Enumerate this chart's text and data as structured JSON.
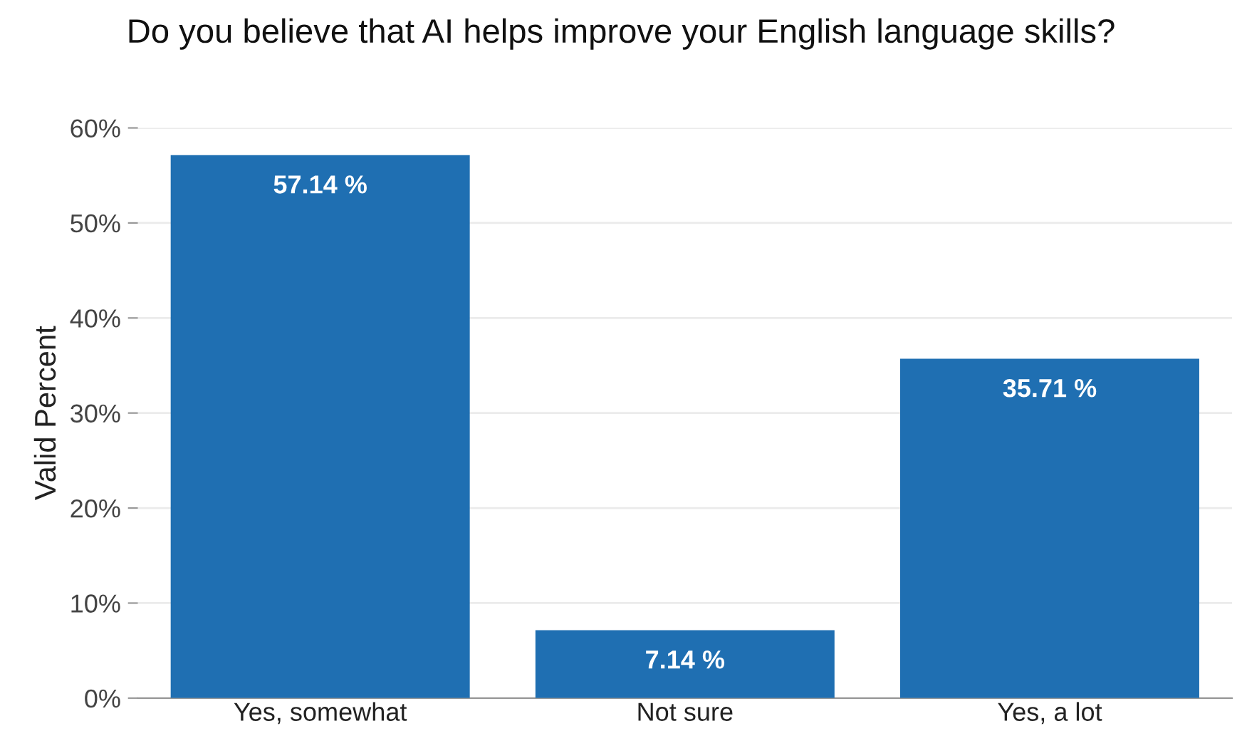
{
  "chart_data": {
    "type": "bar",
    "title": "Do you believe that AI helps improve your English language skills?",
    "ylabel": "Valid Percent",
    "categories": [
      "Yes, somewhat",
      "Not sure",
      "Yes, a lot"
    ],
    "values": [
      57.14,
      7.14,
      35.71
    ],
    "color": "#1f6fb2",
    "value_labels": [
      "57.14 %",
      "7.14 %",
      "35.71 %"
    ],
    "ylim": [
      0,
      60
    ],
    "yticks": [
      {
        "value": 0,
        "label": "0%"
      },
      {
        "value": 10,
        "label": "10%"
      },
      {
        "value": 20,
        "label": "20%"
      },
      {
        "value": 30,
        "label": "30%"
      },
      {
        "value": 40,
        "label": "40%"
      },
      {
        "value": 50,
        "label": "50%"
      },
      {
        "value": 60,
        "label": "60%"
      }
    ],
    "grid": "y",
    "legend": false
  }
}
